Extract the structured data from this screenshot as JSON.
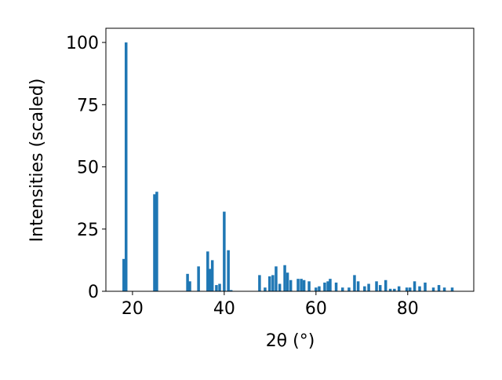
{
  "chart_data": {
    "type": "bar",
    "x_label": "2θ (°)",
    "y_label": "Intensities (scaled)",
    "x": [
      18.1,
      18.6,
      24.8,
      25.3,
      32.0,
      32.5,
      34.4,
      36.4,
      36.9,
      37.4,
      38.3,
      39.0,
      40.0,
      40.9,
      41.5,
      47.7,
      48.9,
      49.9,
      50.6,
      51.3,
      52.1,
      53.2,
      53.8,
      54.5,
      56.1,
      56.8,
      57.4,
      58.5,
      60.0,
      60.7,
      61.9,
      62.6,
      63.1,
      64.4,
      65.8,
      67.2,
      68.4,
      69.2,
      70.6,
      71.5,
      73.2,
      74.0,
      75.2,
      76.2,
      77.1,
      78.1,
      79.8,
      80.5,
      81.5,
      82.6,
      83.8,
      85.6,
      86.8,
      88.0,
      89.7
    ],
    "values": [
      13,
      100,
      39,
      40,
      7,
      4,
      10,
      16,
      9,
      12.5,
      2.5,
      3,
      32,
      16.5,
      0.5,
      6.5,
      1.5,
      6,
      6.5,
      10,
      3,
      10.5,
      7.5,
      4.5,
      5,
      5,
      4.5,
      4,
      1.5,
      2,
      3.5,
      4,
      5,
      3.5,
      1.5,
      1.5,
      6.5,
      4,
      2,
      3,
      4,
      2.5,
      4.5,
      1,
      1,
      2,
      1.5,
      1.5,
      4,
      2,
      3.5,
      1.5,
      2.5,
      1.5,
      1.5
    ],
    "color": "#1f77b4",
    "xlim": [
      14.2,
      94.4
    ],
    "xticks": [
      20,
      40,
      60,
      80
    ],
    "ylim": [
      0,
      105.7
    ],
    "yticks": [
      0,
      25,
      50,
      75,
      100
    ]
  }
}
